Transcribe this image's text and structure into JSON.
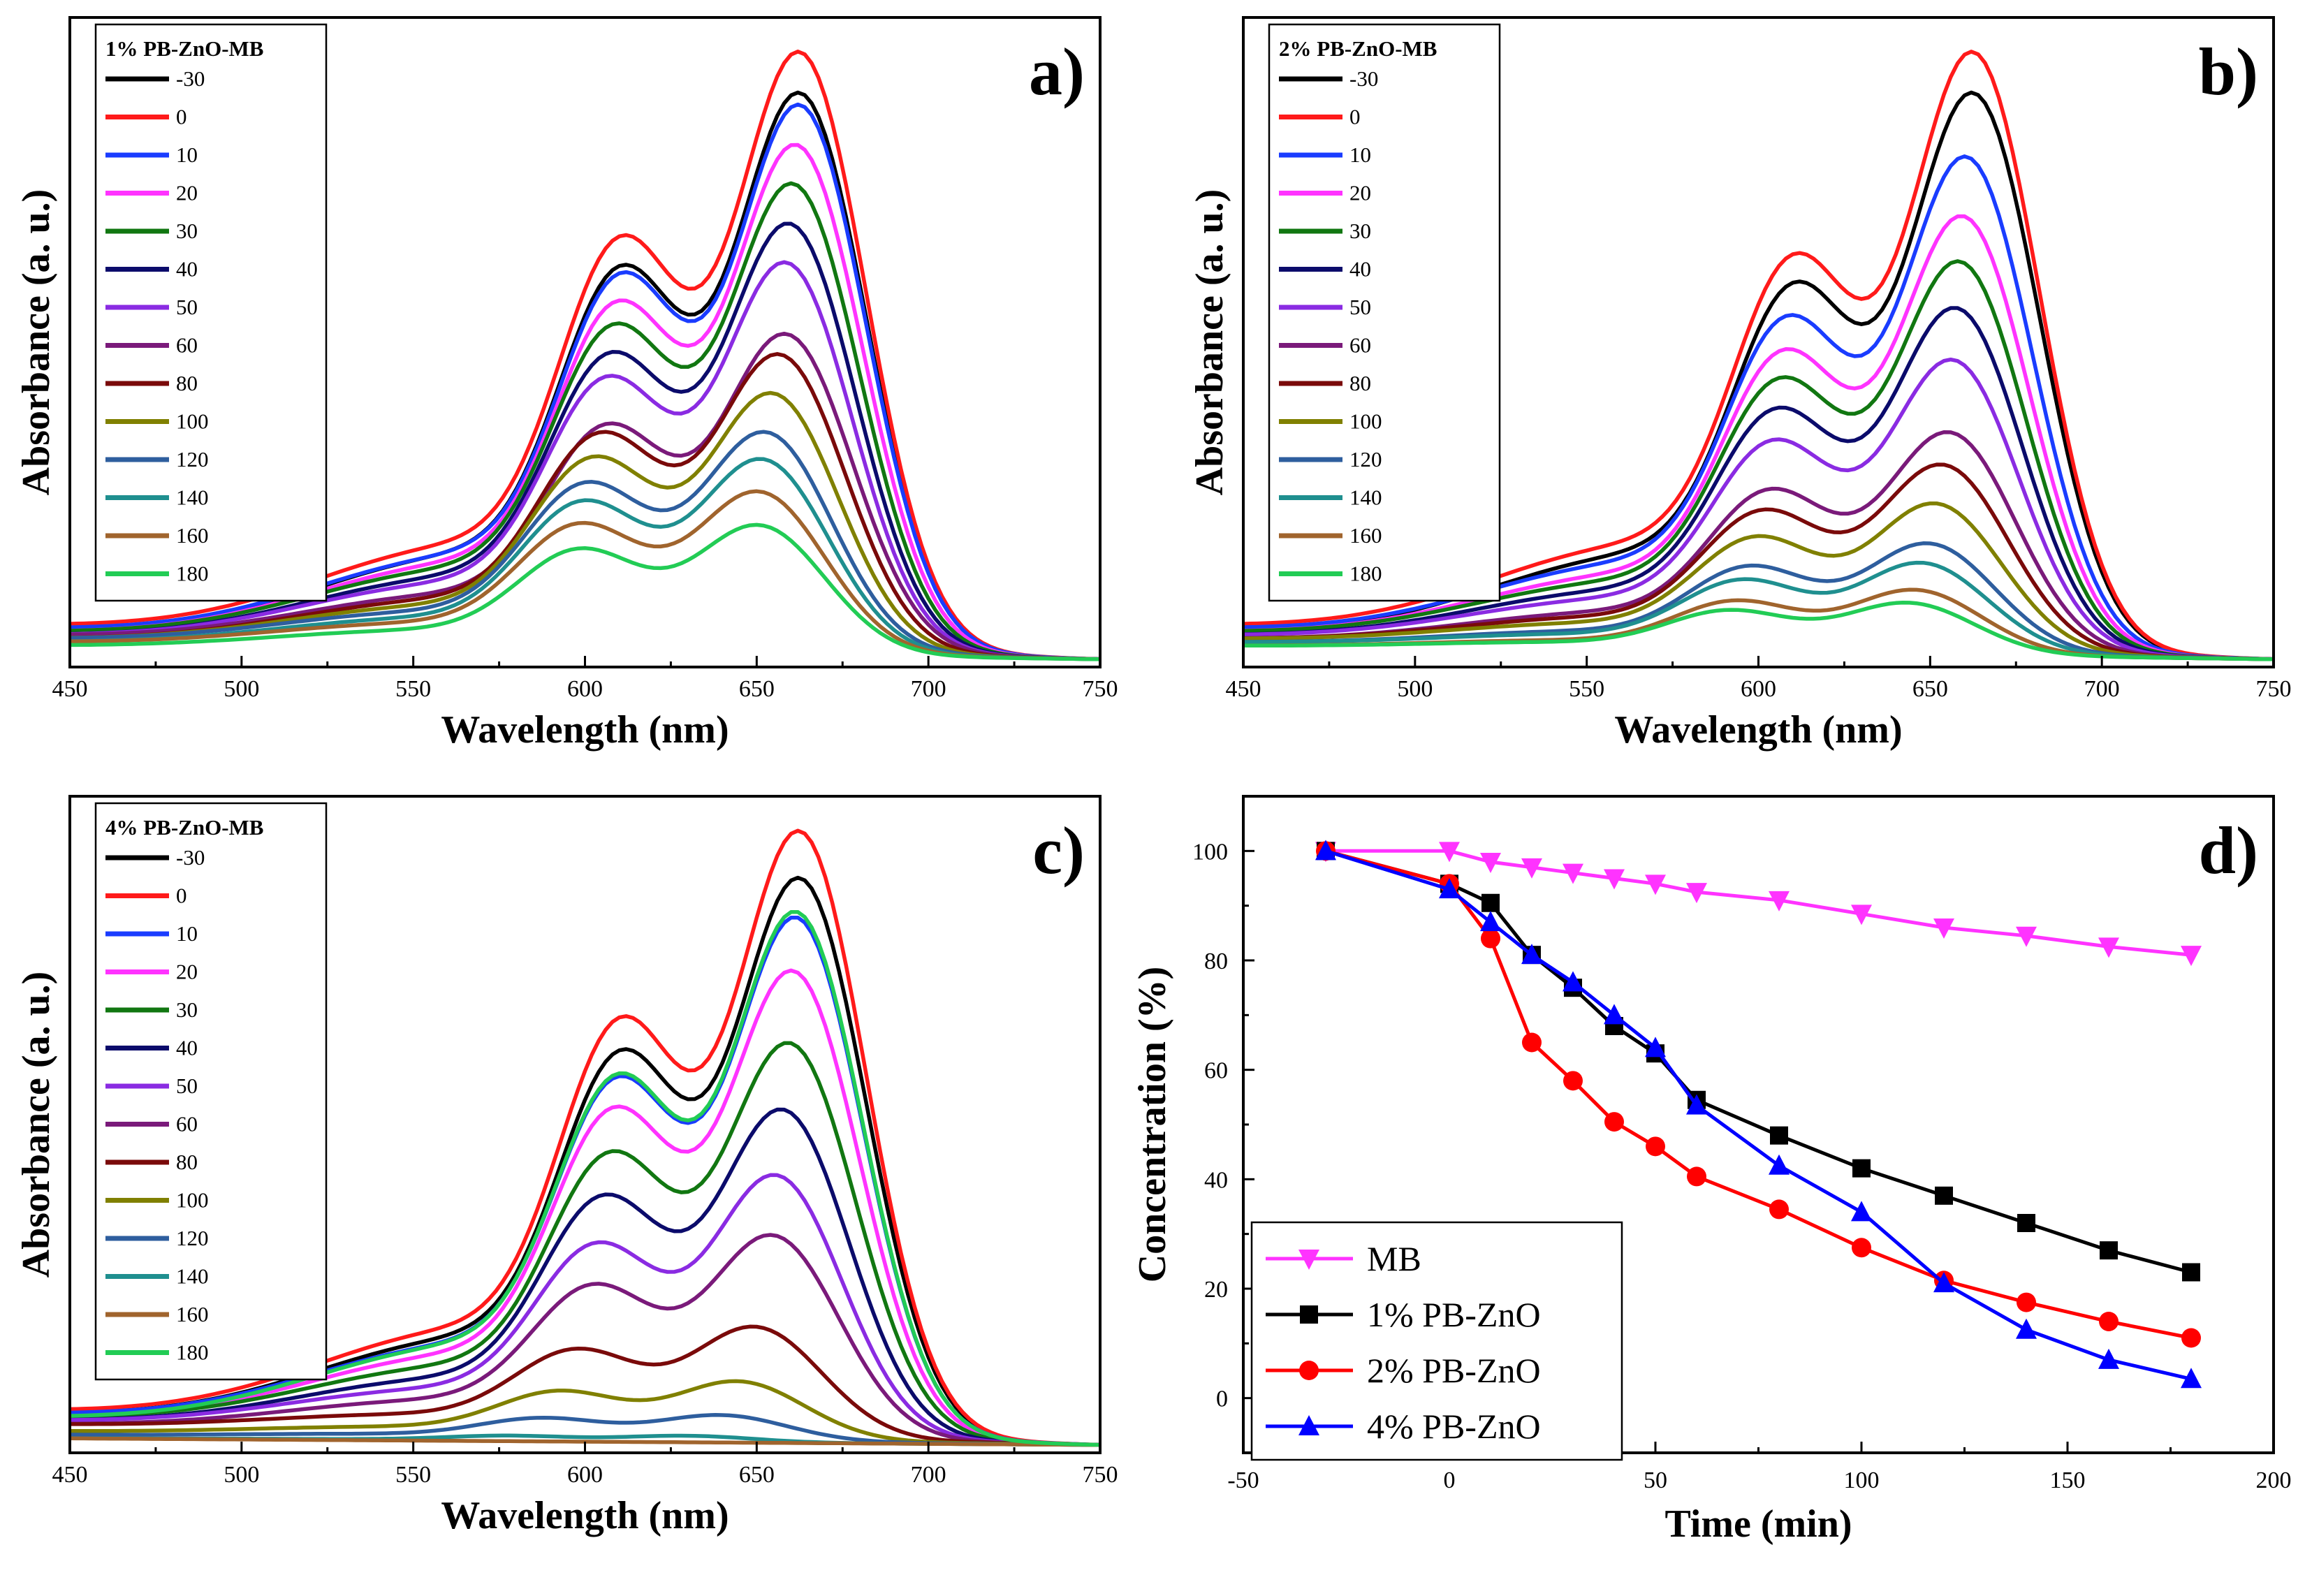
{
  "colors": {
    "-30": "#000000",
    "0": "#ff1a1a",
    "10": "#1a3cff",
    "20": "#ff33ff",
    "30": "#117711",
    "40": "#0b0b6b",
    "50": "#8a2be2",
    "60": "#7a1a7a",
    "80": "#7a0a0a",
    "100": "#808000",
    "120": "#2e5e9e",
    "140": "#1f8f8f",
    "160": "#a0642d",
    "180": "#22cc55"
  },
  "chart_data": [
    {
      "id": "a",
      "type": "line",
      "panel_label": "a)",
      "legend_title": "1% PB-ZnO-MB",
      "xlabel": "Wavelength (nm)",
      "ylabel": "Absorbance (a. u.)",
      "xlim": [
        450,
        750
      ],
      "ylim": [
        0,
        1
      ],
      "xticks": [
        "450",
        "500",
        "550",
        "600",
        "650",
        "700",
        "750"
      ],
      "series_names": [
        "-30",
        "0",
        "10",
        "20",
        "30",
        "40",
        "50",
        "60",
        "80",
        "100",
        "120",
        "140",
        "160",
        "180"
      ],
      "peak_values": [
        0.89,
        0.95,
        0.87,
        0.81,
        0.75,
        0.69,
        0.63,
        0.52,
        0.49,
        0.43,
        0.37,
        0.33,
        0.28,
        0.23
      ],
      "peak_wavelengths": [
        663,
        663,
        663,
        662,
        661,
        660,
        659,
        659,
        657,
        655,
        653,
        652,
        651,
        651
      ],
      "shoulder_ratio": [
        0.74,
        0.74,
        0.74,
        0.74,
        0.75,
        0.75,
        0.76,
        0.77,
        0.8,
        0.82,
        0.84,
        0.86,
        0.88,
        0.9
      ],
      "baseline_values": [
        0.04,
        0.05,
        0.045,
        0.04,
        0.04,
        0.035,
        0.035,
        0.035,
        0.03,
        0.03,
        0.03,
        0.025,
        0.025,
        0.02
      ]
    },
    {
      "id": "b",
      "type": "line",
      "panel_label": "b)",
      "legend_title": "2% PB-ZnO-MB",
      "xlabel": "Wavelength (nm)",
      "ylabel": "Absorbance (a. u.)",
      "xlim": [
        450,
        750
      ],
      "ylim": [
        0,
        1
      ],
      "xticks": [
        "450",
        "500",
        "550",
        "600",
        "650",
        "700",
        "750"
      ],
      "series_names": [
        "-30",
        "0",
        "10",
        "20",
        "30",
        "40",
        "50",
        "60",
        "80",
        "100",
        "120",
        "140",
        "160",
        "180"
      ],
      "peak_values": [
        0.89,
        0.95,
        0.79,
        0.7,
        0.63,
        0.56,
        0.48,
        0.37,
        0.32,
        0.26,
        0.2,
        0.17,
        0.13,
        0.11
      ],
      "peak_wavelengths": [
        663,
        663,
        661,
        660,
        659,
        658,
        657,
        656,
        654,
        652,
        650,
        648,
        646,
        644
      ],
      "shoulder_ratio": [
        0.7,
        0.7,
        0.72,
        0.74,
        0.75,
        0.76,
        0.78,
        0.8,
        0.82,
        0.84,
        0.86,
        0.88,
        0.9,
        0.92
      ],
      "baseline_values": [
        0.04,
        0.05,
        0.045,
        0.04,
        0.04,
        0.035,
        0.035,
        0.03,
        0.03,
        0.03,
        0.025,
        0.025,
        0.02,
        0.02
      ]
    },
    {
      "id": "c",
      "type": "line",
      "panel_label": "c)",
      "legend_title": "4% PB-ZnO-MB",
      "xlabel": "Wavelength (nm)",
      "ylabel": "Absorbance (a. u.)",
      "xlim": [
        450,
        750
      ],
      "ylim": [
        0,
        1
      ],
      "xticks": [
        "450",
        "500",
        "550",
        "600",
        "650",
        "700",
        "750"
      ],
      "series_names": [
        "-30",
        "0",
        "10",
        "20",
        "30",
        "40",
        "50",
        "60",
        "80",
        "100",
        "120",
        "140",
        "160",
        "180"
      ],
      "peak_values": [
        0.88,
        0.95,
        0.82,
        0.74,
        0.63,
        0.53,
        0.43,
        0.34,
        0.2,
        0.12,
        0.07,
        0.04,
        0.03,
        0.83
      ],
      "peak_wavelengths": [
        663,
        663,
        662,
        661,
        660,
        658,
        656,
        655,
        650,
        645,
        640,
        630,
        630,
        662
      ],
      "shoulder_ratio": [
        0.74,
        0.74,
        0.74,
        0.76,
        0.78,
        0.8,
        0.8,
        0.82,
        0.86,
        0.9,
        0.94,
        0.96,
        0.96,
        0.74
      ],
      "baseline_values": [
        0.045,
        0.05,
        0.045,
        0.04,
        0.04,
        0.035,
        0.035,
        0.03,
        0.03,
        0.02,
        0.015,
        0.01,
        0.01,
        0.04
      ]
    },
    {
      "id": "d",
      "type": "line",
      "panel_label": "d)",
      "xlabel": "Time (min)",
      "ylabel": "Concentration (%)",
      "xlim": [
        -50,
        200
      ],
      "ylim": [
        -10,
        110
      ],
      "xticks": [
        -50,
        0,
        50,
        100,
        150,
        200
      ],
      "yticks": [
        0,
        20,
        40,
        60,
        80,
        100
      ],
      "legend_location": "bottom-left",
      "x": [
        -30,
        0,
        10,
        20,
        30,
        40,
        50,
        60,
        80,
        100,
        120,
        140,
        160,
        180
      ],
      "series": [
        {
          "name": "MB",
          "color": "#ff33ff",
          "marker": "triangle-down",
          "values": [
            100,
            100,
            98,
            97,
            96,
            95,
            94,
            92.5,
            91,
            88.5,
            86,
            84.5,
            82.5,
            81
          ]
        },
        {
          "name": "1% PB-ZnO",
          "color": "#000000",
          "marker": "square",
          "values": [
            100,
            94,
            90.5,
            81,
            75,
            68,
            63,
            54.5,
            48,
            42,
            37,
            32,
            27,
            23
          ]
        },
        {
          "name": "2% PB-ZnO",
          "color": "#ff0000",
          "marker": "circle",
          "values": [
            100,
            94,
            84,
            65,
            58,
            50.5,
            46,
            40.5,
            34.5,
            27.5,
            21.5,
            17.5,
            14,
            11
          ]
        },
        {
          "name": "4% PB-ZnO",
          "color": "#0000ff",
          "marker": "triangle-up",
          "values": [
            100,
            93,
            87,
            81,
            76,
            70,
            64,
            53.5,
            42.5,
            34,
            21,
            12.5,
            7,
            3.5
          ]
        }
      ]
    }
  ]
}
